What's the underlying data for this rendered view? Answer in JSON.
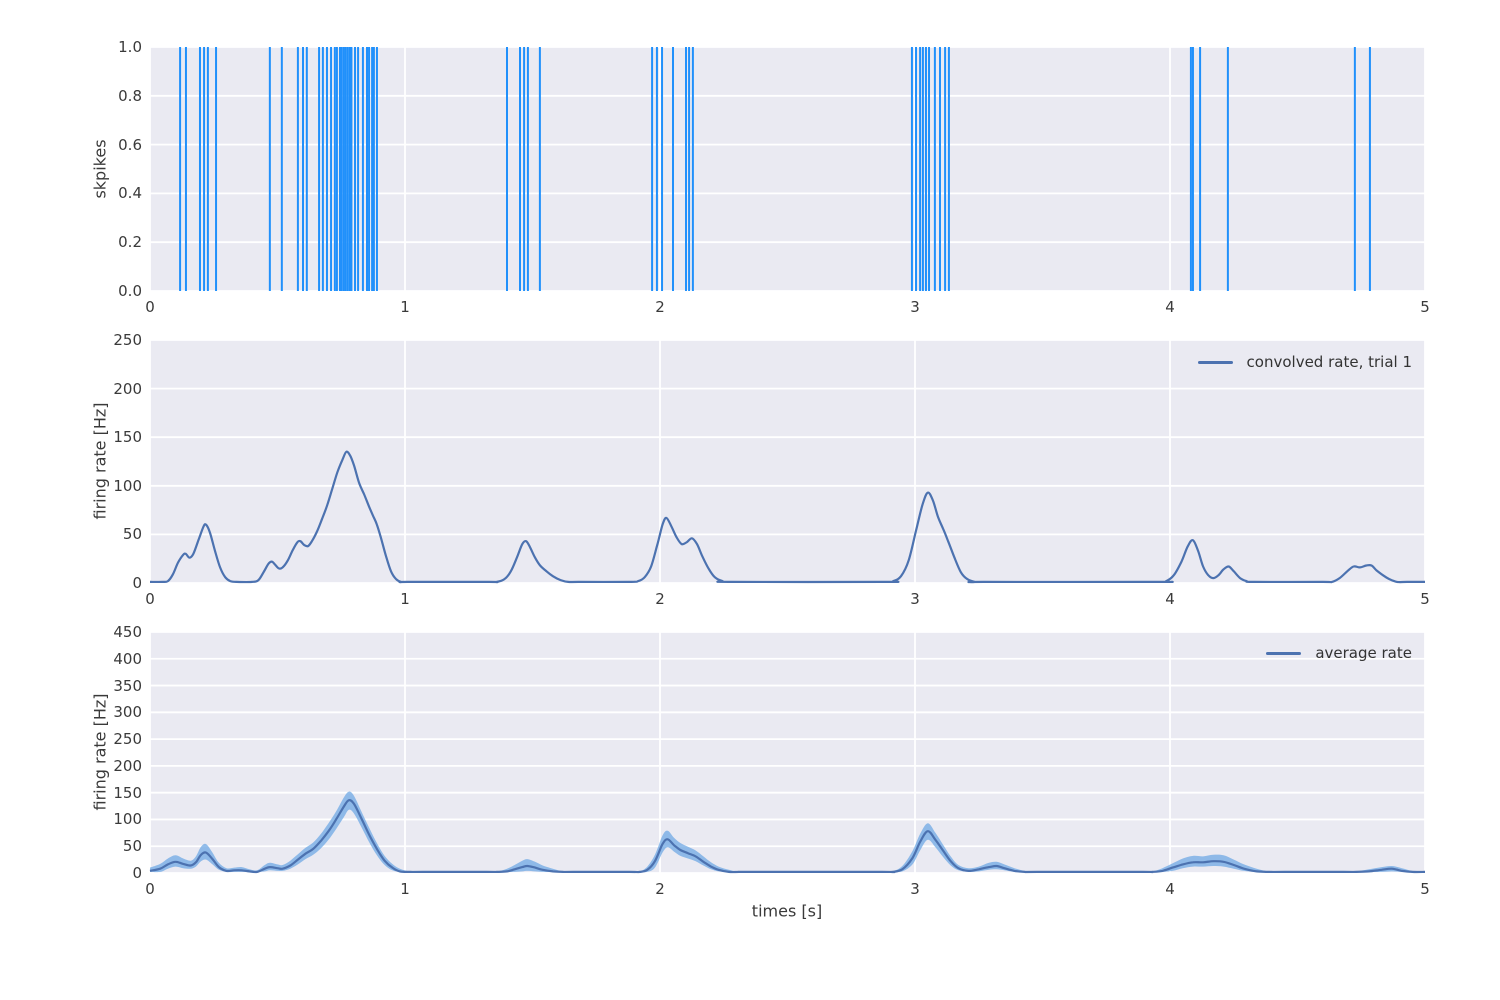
{
  "figure": {
    "background": "#ffffff"
  },
  "style": {
    "axes_bg": "#eaeaf2",
    "grid_color": "#ffffff",
    "spike_color": "#2090fb",
    "line_color": "#4c72b0",
    "band_color": "#6fa8e4",
    "band_opacity": 0.75,
    "tick_color": "#3a3a3a",
    "label_color": "#3a3a3a"
  },
  "chart_data": [
    {
      "type": "event-raster",
      "ylabel": "skpikes",
      "xlim": [
        0,
        5
      ],
      "ylim": [
        0,
        1
      ],
      "x_tick_values": [
        0,
        1,
        2,
        3,
        4,
        5
      ],
      "x_ticks": [
        "0",
        "1",
        "2",
        "3",
        "4",
        "5"
      ],
      "y_tick_values": [
        0,
        0.2,
        0.4,
        0.6,
        0.8,
        1.0
      ],
      "y_ticks": [
        "0.0",
        "0.2",
        "0.4",
        "0.6",
        "0.8",
        "1.0"
      ],
      "grid": true,
      "spike_times": [
        0.118,
        0.141,
        0.196,
        0.212,
        0.227,
        0.259,
        0.47,
        0.517,
        0.58,
        0.6,
        0.615,
        0.663,
        0.678,
        0.694,
        0.71,
        0.725,
        0.733,
        0.745,
        0.752,
        0.76,
        0.767,
        0.775,
        0.783,
        0.79,
        0.804,
        0.816,
        0.835,
        0.851,
        0.859,
        0.871,
        0.878,
        0.89,
        1.4,
        1.451,
        1.467,
        1.482,
        1.529,
        1.969,
        1.988,
        2.008,
        2.051,
        2.102,
        2.114,
        2.129,
        2.988,
        3.004,
        3.02,
        3.031,
        3.043,
        3.055,
        3.078,
        3.098,
        3.118,
        3.133,
        4.082,
        4.09,
        4.118,
        4.227,
        4.725,
        4.784
      ]
    },
    {
      "type": "line",
      "legend": "convolved rate, trial 1",
      "ylabel": "firing rate [Hz]",
      "xlim": [
        0,
        5
      ],
      "ylim": [
        0,
        250
      ],
      "x_tick_values": [
        0,
        1,
        2,
        3,
        4,
        5
      ],
      "x_ticks": [
        "0",
        "1",
        "2",
        "3",
        "4",
        "5"
      ],
      "y_tick_values": [
        0,
        50,
        100,
        150,
        200,
        250
      ],
      "y_ticks": [
        "0",
        "50",
        "100",
        "150",
        "200",
        "250"
      ],
      "grid": true,
      "points": [
        [
          0,
          0
        ],
        [
          0.05,
          0
        ],
        [
          0.07,
          2
        ],
        [
          0.09,
          9
        ],
        [
          0.11,
          21
        ],
        [
          0.13,
          29
        ],
        [
          0.14,
          30
        ],
        [
          0.155,
          26
        ],
        [
          0.17,
          30
        ],
        [
          0.19,
          44
        ],
        [
          0.21,
          58
        ],
        [
          0.22,
          60
        ],
        [
          0.235,
          52
        ],
        [
          0.255,
          33
        ],
        [
          0.275,
          16
        ],
        [
          0.295,
          6
        ],
        [
          0.315,
          2
        ],
        [
          0.34,
          0
        ],
        [
          0.4,
          0
        ],
        [
          0.425,
          3
        ],
        [
          0.445,
          11
        ],
        [
          0.465,
          20
        ],
        [
          0.478,
          22
        ],
        [
          0.49,
          19
        ],
        [
          0.505,
          15
        ],
        [
          0.52,
          16
        ],
        [
          0.54,
          23
        ],
        [
          0.56,
          34
        ],
        [
          0.578,
          42
        ],
        [
          0.59,
          43
        ],
        [
          0.605,
          39
        ],
        [
          0.62,
          38
        ],
        [
          0.635,
          43
        ],
        [
          0.655,
          53
        ],
        [
          0.675,
          66
        ],
        [
          0.695,
          80
        ],
        [
          0.715,
          97
        ],
        [
          0.735,
          114
        ],
        [
          0.755,
          127
        ],
        [
          0.77,
          135
        ],
        [
          0.785,
          131
        ],
        [
          0.8,
          121
        ],
        [
          0.82,
          103
        ],
        [
          0.84,
          91
        ],
        [
          0.86,
          78
        ],
        [
          0.875,
          69
        ],
        [
          0.89,
          60
        ],
        [
          0.905,
          47
        ],
        [
          0.925,
          28
        ],
        [
          0.945,
          12
        ],
        [
          0.965,
          4
        ],
        [
          0.985,
          1
        ],
        [
          1.01,
          0
        ],
        [
          1.33,
          0
        ],
        [
          1.36,
          1
        ],
        [
          1.39,
          4
        ],
        [
          1.415,
          12
        ],
        [
          1.44,
          27
        ],
        [
          1.46,
          40
        ],
        [
          1.475,
          43
        ],
        [
          1.49,
          37
        ],
        [
          1.51,
          26
        ],
        [
          1.53,
          18
        ],
        [
          1.555,
          12
        ],
        [
          1.58,
          7
        ],
        [
          1.61,
          3
        ],
        [
          1.64,
          1
        ],
        [
          1.68,
          0
        ],
        [
          1.88,
          0
        ],
        [
          1.915,
          2
        ],
        [
          1.94,
          6
        ],
        [
          1.965,
          17
        ],
        [
          1.99,
          40
        ],
        [
          2.01,
          60
        ],
        [
          2.025,
          67
        ],
        [
          2.045,
          58
        ],
        [
          2.065,
          47
        ],
        [
          2.085,
          40
        ],
        [
          2.105,
          42
        ],
        [
          2.125,
          46
        ],
        [
          2.145,
          40
        ],
        [
          2.165,
          28
        ],
        [
          2.19,
          15
        ],
        [
          2.215,
          6
        ],
        [
          2.245,
          2
        ],
        [
          2.28,
          0
        ],
        [
          2.88,
          0
        ],
        [
          2.915,
          2
        ],
        [
          2.945,
          7
        ],
        [
          2.975,
          23
        ],
        [
          3.005,
          55
        ],
        [
          3.03,
          81
        ],
        [
          3.05,
          93
        ],
        [
          3.07,
          85
        ],
        [
          3.09,
          68
        ],
        [
          3.11,
          56
        ],
        [
          3.13,
          43
        ],
        [
          3.155,
          26
        ],
        [
          3.18,
          11
        ],
        [
          3.205,
          4
        ],
        [
          3.235,
          1
        ],
        [
          3.27,
          0
        ],
        [
          3.95,
          0
        ],
        [
          3.985,
          2
        ],
        [
          4.015,
          8
        ],
        [
          4.045,
          22
        ],
        [
          4.07,
          38
        ],
        [
          4.09,
          44
        ],
        [
          4.11,
          33
        ],
        [
          4.13,
          17
        ],
        [
          4.15,
          8
        ],
        [
          4.17,
          5
        ],
        [
          4.19,
          8
        ],
        [
          4.21,
          14
        ],
        [
          4.23,
          17
        ],
        [
          4.25,
          12
        ],
        [
          4.275,
          5
        ],
        [
          4.3,
          2
        ],
        [
          4.33,
          0
        ],
        [
          4.6,
          0
        ],
        [
          4.635,
          1
        ],
        [
          4.665,
          5
        ],
        [
          4.695,
          12
        ],
        [
          4.72,
          17
        ],
        [
          4.745,
          16
        ],
        [
          4.77,
          18
        ],
        [
          4.79,
          18
        ],
        [
          4.81,
          13
        ],
        [
          4.835,
          8
        ],
        [
          4.86,
          4
        ],
        [
          4.89,
          1
        ],
        [
          4.93,
          0
        ],
        [
          5,
          0
        ]
      ]
    },
    {
      "type": "line-band",
      "legend": "average rate",
      "ylabel": "firing rate [Hz]",
      "xlabel": "times [s]",
      "xlim": [
        0,
        5
      ],
      "ylim": [
        0,
        450
      ],
      "x_tick_values": [
        0,
        1,
        2,
        3,
        4,
        5
      ],
      "x_ticks": [
        "0",
        "1",
        "2",
        "3",
        "4",
        "5"
      ],
      "y_tick_values": [
        0,
        50,
        100,
        150,
        200,
        250,
        300,
        350,
        400,
        450
      ],
      "y_ticks": [
        "0",
        "50",
        "100",
        "150",
        "200",
        "250",
        "300",
        "350",
        "400",
        "450"
      ],
      "grid": true,
      "points_format": [
        "t",
        "band_low",
        "mean",
        "band_high"
      ],
      "points": [
        [
          0,
          0,
          4,
          10
        ],
        [
          0.04,
          2,
          8,
          17
        ],
        [
          0.07,
          8,
          16,
          27
        ],
        [
          0.1,
          12,
          21,
          33
        ],
        [
          0.13,
          9,
          17,
          27
        ],
        [
          0.16,
          8,
          14,
          23
        ],
        [
          0.18,
          12,
          20,
          31
        ],
        [
          0.2,
          22,
          34,
          49
        ],
        [
          0.22,
          25,
          38,
          54
        ],
        [
          0.245,
          16,
          26,
          38
        ],
        [
          0.27,
          6,
          11,
          19
        ],
        [
          0.3,
          2,
          4,
          9
        ],
        [
          0.33,
          2,
          5,
          10
        ],
        [
          0.36,
          2,
          5,
          11
        ],
        [
          0.39,
          1,
          3,
          7
        ],
        [
          0.42,
          1,
          2,
          5
        ],
        [
          0.45,
          3,
          8,
          15
        ],
        [
          0.47,
          5,
          11,
          19
        ],
        [
          0.5,
          4,
          9,
          16
        ],
        [
          0.52,
          4,
          8,
          15
        ],
        [
          0.55,
          8,
          14,
          23
        ],
        [
          0.58,
          16,
          25,
          35
        ],
        [
          0.61,
          26,
          36,
          47
        ],
        [
          0.64,
          34,
          45,
          57
        ],
        [
          0.67,
          46,
          60,
          73
        ],
        [
          0.7,
          62,
          78,
          93
        ],
        [
          0.73,
          82,
          100,
          115
        ],
        [
          0.76,
          104,
          124,
          141
        ],
        [
          0.78,
          118,
          136,
          152
        ],
        [
          0.8,
          111,
          129,
          144
        ],
        [
          0.83,
          85,
          101,
          114
        ],
        [
          0.86,
          57,
          71,
          84
        ],
        [
          0.89,
          33,
          45,
          56
        ],
        [
          0.92,
          15,
          23,
          32
        ],
        [
          0.95,
          5,
          10,
          17
        ],
        [
          0.98,
          1,
          3,
          8
        ],
        [
          1.02,
          0,
          1,
          3
        ],
        [
          1.07,
          0,
          0,
          1
        ],
        [
          1.32,
          0,
          0,
          1
        ],
        [
          1.36,
          0,
          1,
          3
        ],
        [
          1.4,
          0,
          3,
          8
        ],
        [
          1.43,
          1,
          7,
          15
        ],
        [
          1.46,
          3,
          11,
          23
        ],
        [
          1.48,
          4,
          13,
          26
        ],
        [
          1.51,
          3,
          10,
          21
        ],
        [
          1.54,
          1,
          6,
          14
        ],
        [
          1.58,
          0,
          3,
          8
        ],
        [
          1.62,
          0,
          1,
          3
        ],
        [
          1.66,
          0,
          0,
          1
        ],
        [
          1.88,
          0,
          0,
          1
        ],
        [
          1.92,
          0,
          1,
          3
        ],
        [
          1.95,
          2,
          6,
          12
        ],
        [
          1.98,
          10,
          22,
          34
        ],
        [
          2.01,
          38,
          54,
          70
        ],
        [
          2.03,
          48,
          63,
          79
        ],
        [
          2.055,
          40,
          52,
          66
        ],
        [
          2.08,
          32,
          43,
          56
        ],
        [
          2.11,
          27,
          37,
          49
        ],
        [
          2.14,
          22,
          31,
          42
        ],
        [
          2.17,
          14,
          21,
          31
        ],
        [
          2.2,
          7,
          12,
          20
        ],
        [
          2.23,
          3,
          6,
          12
        ],
        [
          2.27,
          1,
          2,
          6
        ],
        [
          2.31,
          0,
          1,
          2
        ],
        [
          2.36,
          0,
          0,
          1
        ],
        [
          2.87,
          0,
          0,
          1
        ],
        [
          2.91,
          0,
          1,
          3
        ],
        [
          2.95,
          3,
          7,
          13
        ],
        [
          2.99,
          16,
          28,
          41
        ],
        [
          3.02,
          42,
          58,
          73
        ],
        [
          3.05,
          62,
          78,
          93
        ],
        [
          3.08,
          48,
          62,
          75
        ],
        [
          3.11,
          30,
          42,
          53
        ],
        [
          3.14,
          14,
          22,
          31
        ],
        [
          3.17,
          5,
          9,
          15
        ],
        [
          3.21,
          2,
          4,
          9
        ],
        [
          3.25,
          3,
          7,
          12
        ],
        [
          3.29,
          6,
          11,
          19
        ],
        [
          3.32,
          7,
          13,
          21
        ],
        [
          3.35,
          5,
          9,
          16
        ],
        [
          3.39,
          2,
          4,
          9
        ],
        [
          3.43,
          0,
          1,
          4
        ],
        [
          3.48,
          0,
          0,
          1
        ],
        [
          3.89,
          0,
          0,
          1
        ],
        [
          3.93,
          0,
          1,
          3
        ],
        [
          3.97,
          1,
          4,
          9
        ],
        [
          4.01,
          4,
          10,
          18
        ],
        [
          4.05,
          9,
          16,
          27
        ],
        [
          4.09,
          12,
          20,
          32
        ],
        [
          4.13,
          12,
          20,
          31
        ],
        [
          4.17,
          13,
          22,
          34
        ],
        [
          4.21,
          12,
          21,
          33
        ],
        [
          4.25,
          8,
          15,
          25
        ],
        [
          4.29,
          4,
          8,
          16
        ],
        [
          4.34,
          1,
          3,
          8
        ],
        [
          4.39,
          0,
          1,
          3
        ],
        [
          4.45,
          0,
          0,
          2
        ],
        [
          4.68,
          0,
          0,
          2
        ],
        [
          4.73,
          0,
          1,
          3
        ],
        [
          4.78,
          1,
          3,
          7
        ],
        [
          4.83,
          2,
          6,
          11
        ],
        [
          4.87,
          3,
          8,
          13
        ],
        [
          4.91,
          1,
          4,
          9
        ],
        [
          4.95,
          0,
          2,
          4
        ],
        [
          5,
          0,
          1,
          2
        ]
      ]
    }
  ]
}
